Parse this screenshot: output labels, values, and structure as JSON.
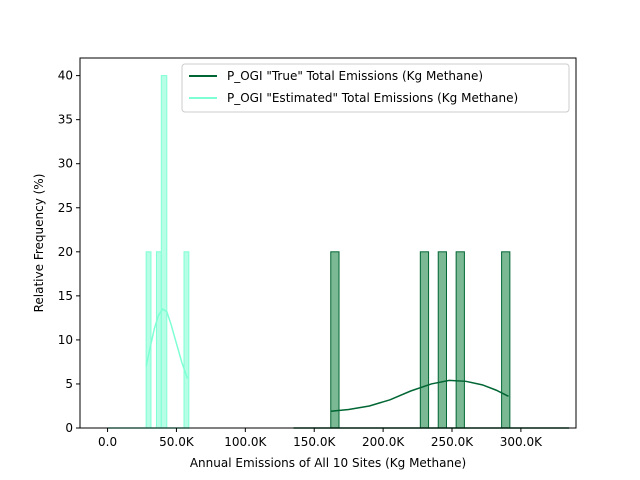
{
  "chart_data": {
    "type": "bar",
    "xlabel": "Annual Emissions of All 10 Sites (Kg Methane)",
    "ylabel": "Relative Frequency (%)",
    "xlim": [
      -20000,
      340000
    ],
    "ylim": [
      0,
      42
    ],
    "x_ticks": [
      {
        "value": 0,
        "label": "0.0"
      },
      {
        "value": 50000,
        "label": "50.0K"
      },
      {
        "value": 100000,
        "label": "100.0K"
      },
      {
        "value": 150000,
        "label": "150.0K"
      },
      {
        "value": 200000,
        "label": "200.0K"
      },
      {
        "value": 250000,
        "label": "250.0K"
      },
      {
        "value": 300000,
        "label": "300.0K"
      }
    ],
    "y_ticks": [
      0,
      5,
      10,
      15,
      20,
      25,
      30,
      35,
      40
    ],
    "grid": false,
    "legend_position": "top-right",
    "series": [
      {
        "name": "P_OGI \"True\" Total Emissions (Kg Methane)",
        "color": "#006633",
        "fill_color": "#7bb894",
        "bins": [
          {
            "x0": 162000,
            "x1": 168000,
            "value": 20
          },
          {
            "x0": 227000,
            "x1": 233000,
            "value": 20
          },
          {
            "x0": 240000,
            "x1": 246000,
            "value": 20
          },
          {
            "x0": 253000,
            "x1": 259000,
            "value": 20
          },
          {
            "x0": 286000,
            "x1": 292000,
            "value": 20
          }
        ],
        "kde": [
          {
            "x": 162000,
            "y": 1.9
          },
          {
            "x": 175000,
            "y": 2.1
          },
          {
            "x": 190000,
            "y": 2.5
          },
          {
            "x": 205000,
            "y": 3.2
          },
          {
            "x": 220000,
            "y": 4.2
          },
          {
            "x": 235000,
            "y": 5.0
          },
          {
            "x": 248000,
            "y": 5.4
          },
          {
            "x": 260000,
            "y": 5.3
          },
          {
            "x": 272000,
            "y": 4.9
          },
          {
            "x": 282000,
            "y": 4.3
          },
          {
            "x": 291000,
            "y": 3.6
          }
        ]
      },
      {
        "name": "P_OGI \"Estimated\" Total Emissions (Kg Methane)",
        "color": "#7fffd4",
        "fill_color": "#b6ffe6",
        "bins": [
          {
            "x0": 28000,
            "x1": 31500,
            "value": 20
          },
          {
            "x0": 35500,
            "x1": 39000,
            "value": 20
          },
          {
            "x0": 39000,
            "x1": 43000,
            "value": 40
          },
          {
            "x0": 55500,
            "x1": 59000,
            "value": 20
          }
        ],
        "kde": [
          {
            "x": 28000,
            "y": 7.0
          },
          {
            "x": 31000,
            "y": 9.2
          },
          {
            "x": 34000,
            "y": 11.3
          },
          {
            "x": 37000,
            "y": 12.8
          },
          {
            "x": 40000,
            "y": 13.5
          },
          {
            "x": 43000,
            "y": 13.2
          },
          {
            "x": 46000,
            "y": 11.8
          },
          {
            "x": 50000,
            "y": 9.6
          },
          {
            "x": 54000,
            "y": 7.4
          },
          {
            "x": 58000,
            "y": 5.6
          }
        ]
      }
    ],
    "baseline_spans": [
      {
        "series": 1,
        "x0": 0,
        "x1": 59000
      },
      {
        "series": 0,
        "x0": 135000,
        "x1": 335000
      }
    ]
  }
}
